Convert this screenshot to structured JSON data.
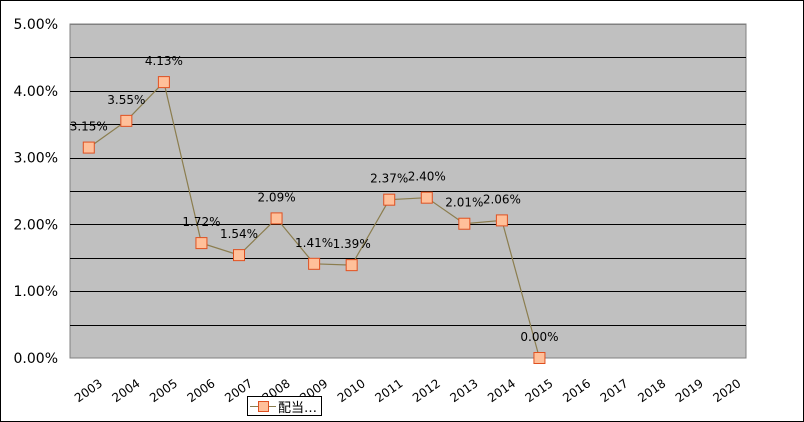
{
  "chart_data": {
    "type": "line",
    "categories": [
      "2003",
      "2004",
      "2005",
      "2006",
      "2007",
      "2008",
      "2009",
      "2010",
      "2011",
      "2012",
      "2013",
      "2014",
      "2015",
      "2016",
      "2017",
      "2018",
      "2019",
      "2020"
    ],
    "series": [
      {
        "name": "配当…",
        "values": [
          3.15,
          3.55,
          4.13,
          1.72,
          1.54,
          2.09,
          1.41,
          1.39,
          2.37,
          2.4,
          2.01,
          2.06,
          0.0,
          null,
          null,
          null,
          null,
          null
        ],
        "labels": [
          "3.15%",
          "3.55%",
          "4.13%",
          "1.72%",
          "1.54%",
          "2.09%",
          "1.41%",
          "1.39%",
          "2.37%",
          "2.40%",
          "2.01%",
          "2.06%",
          "0.00%",
          null,
          null,
          null,
          null,
          null
        ]
      }
    ],
    "y_ticks": [
      "0.00%",
      "1.00%",
      "2.00%",
      "3.00%",
      "4.00%",
      "5.00%"
    ],
    "ylim": [
      0,
      5
    ],
    "ystep": 0.5,
    "grid": true,
    "legend_position": "bottom",
    "colors": {
      "plot_bg": "#c0c0c0",
      "grid": "#000000",
      "line": "#8b7d4e",
      "marker_fill": "#ffc09a",
      "marker_edge": "#e05020"
    }
  },
  "legend": {
    "label": "配当…"
  }
}
